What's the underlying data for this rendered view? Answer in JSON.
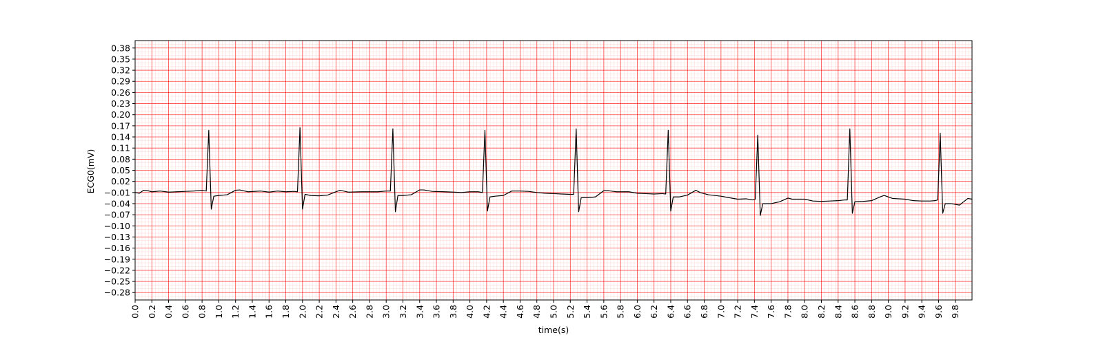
{
  "chart_data": {
    "type": "line",
    "xlabel": "time(s)",
    "ylabel": "ECG0(mV)",
    "color": "#000000",
    "grid": true,
    "grid_color": "#ff0000",
    "x": [
      0.0,
      0.05,
      0.1,
      0.15,
      0.2,
      0.3,
      0.4,
      0.5,
      0.6,
      0.7,
      0.8,
      0.85,
      0.88,
      0.91,
      0.94,
      1.0,
      1.1,
      1.2,
      1.25,
      1.35,
      1.5,
      1.6,
      1.7,
      1.8,
      1.9,
      1.94,
      1.97,
      2.0,
      2.03,
      2.1,
      2.2,
      2.3,
      2.4,
      2.45,
      2.55,
      2.7,
      2.8,
      2.9,
      3.0,
      3.05,
      3.08,
      3.11,
      3.14,
      3.2,
      3.3,
      3.4,
      3.45,
      3.55,
      3.7,
      3.8,
      3.9,
      4.0,
      4.1,
      4.15,
      4.18,
      4.21,
      4.24,
      4.3,
      4.4,
      4.5,
      4.6,
      4.7,
      4.8,
      4.9,
      5.0,
      5.1,
      5.2,
      5.24,
      5.27,
      5.3,
      5.33,
      5.4,
      5.5,
      5.6,
      5.65,
      5.75,
      5.9,
      6.0,
      6.1,
      6.2,
      6.3,
      6.34,
      6.37,
      6.4,
      6.43,
      6.5,
      6.6,
      6.7,
      6.75,
      6.85,
      7.0,
      7.1,
      7.2,
      7.3,
      7.38,
      7.41,
      7.44,
      7.47,
      7.5,
      7.6,
      7.7,
      7.8,
      7.85,
      8.0,
      8.1,
      8.2,
      8.3,
      8.4,
      8.48,
      8.51,
      8.54,
      8.57,
      8.6,
      8.7,
      8.8,
      8.9,
      8.95,
      9.05,
      9.2,
      9.3,
      9.4,
      9.5,
      9.56,
      9.59,
      9.62,
      9.65,
      9.68,
      9.75,
      9.85,
      9.95,
      10.0
    ],
    "values": [
      -0.01,
      -0.012,
      -0.004,
      -0.005,
      -0.008,
      -0.006,
      -0.009,
      -0.008,
      -0.007,
      -0.006,
      -0.004,
      -0.006,
      0.158,
      -0.055,
      -0.02,
      -0.018,
      -0.016,
      -0.004,
      -0.003,
      -0.008,
      -0.006,
      -0.009,
      -0.006,
      -0.008,
      -0.007,
      -0.008,
      0.165,
      -0.055,
      -0.015,
      -0.018,
      -0.019,
      -0.017,
      -0.008,
      -0.004,
      -0.009,
      -0.008,
      -0.008,
      -0.008,
      -0.006,
      -0.006,
      0.162,
      -0.062,
      -0.018,
      -0.018,
      -0.016,
      -0.003,
      -0.003,
      -0.007,
      -0.008,
      -0.009,
      -0.01,
      -0.008,
      -0.008,
      -0.01,
      0.158,
      -0.06,
      -0.022,
      -0.02,
      -0.018,
      -0.006,
      -0.006,
      -0.007,
      -0.01,
      -0.012,
      -0.013,
      -0.014,
      -0.015,
      -0.015,
      0.162,
      -0.062,
      -0.024,
      -0.024,
      -0.022,
      -0.005,
      -0.005,
      -0.008,
      -0.008,
      -0.012,
      -0.013,
      -0.014,
      -0.013,
      -0.014,
      0.158,
      -0.06,
      -0.022,
      -0.022,
      -0.017,
      -0.004,
      -0.01,
      -0.016,
      -0.02,
      -0.024,
      -0.028,
      -0.027,
      -0.03,
      -0.028,
      0.145,
      -0.072,
      -0.04,
      -0.04,
      -0.035,
      -0.025,
      -0.028,
      -0.028,
      -0.033,
      -0.034,
      -0.033,
      -0.032,
      -0.03,
      -0.03,
      0.162,
      -0.066,
      -0.035,
      -0.034,
      -0.032,
      -0.022,
      -0.018,
      -0.026,
      -0.028,
      -0.032,
      -0.033,
      -0.033,
      -0.032,
      -0.03,
      0.15,
      -0.066,
      -0.04,
      -0.04,
      -0.044,
      -0.026,
      -0.028
    ],
    "xlim": [
      0,
      10
    ],
    "xticks": [
      {
        "value": 0,
        "label": "0.0"
      },
      0.2,
      0.4,
      0.6,
      0.8,
      {
        "value": 1,
        "label": "1.0"
      },
      1.2,
      1.4,
      1.6,
      1.8,
      {
        "value": 2,
        "label": "2.0"
      },
      2.2,
      2.4,
      2.6,
      2.8,
      {
        "value": 3,
        "label": "3.0"
      },
      3.2,
      3.4,
      3.6,
      3.8,
      {
        "value": 4,
        "label": "4.0"
      },
      4.2,
      4.4,
      4.6,
      4.8,
      {
        "value": 5,
        "label": "5.0"
      },
      5.2,
      5.4,
      5.6,
      5.8,
      {
        "value": 6,
        "label": "6.0"
      },
      6.2,
      6.4,
      6.6,
      6.8,
      {
        "value": 7,
        "label": "7.0"
      },
      7.2,
      7.4,
      7.6,
      7.8,
      {
        "value": 8,
        "label": "8.0"
      },
      8.2,
      8.4,
      8.6,
      8.8,
      {
        "value": 9,
        "label": "9.0"
      },
      9.2,
      9.4,
      9.6,
      9.8
    ],
    "ylim": [
      -0.3,
      0.4
    ],
    "yticks": [
      {
        "value": -0.28,
        "label": "−0.28"
      },
      {
        "value": -0.25,
        "label": "−0.25"
      },
      {
        "value": -0.22,
        "label": "−0.22"
      },
      {
        "value": -0.19,
        "label": "−0.19"
      },
      {
        "value": -0.16,
        "label": "−0.16"
      },
      {
        "value": -0.13,
        "label": "−0.13"
      },
      {
        "value": -0.1,
        "label": "−0.10"
      },
      {
        "value": -0.07,
        "label": "−0.07"
      },
      {
        "value": -0.04,
        "label": "−0.04"
      },
      {
        "value": -0.01,
        "label": "−0.01"
      },
      0.02,
      0.05,
      0.08,
      0.11,
      0.14,
      0.17,
      {
        "value": 0.2,
        "label": "0.20"
      },
      0.23,
      0.26,
      0.29,
      0.32,
      0.35,
      0.38
    ]
  }
}
